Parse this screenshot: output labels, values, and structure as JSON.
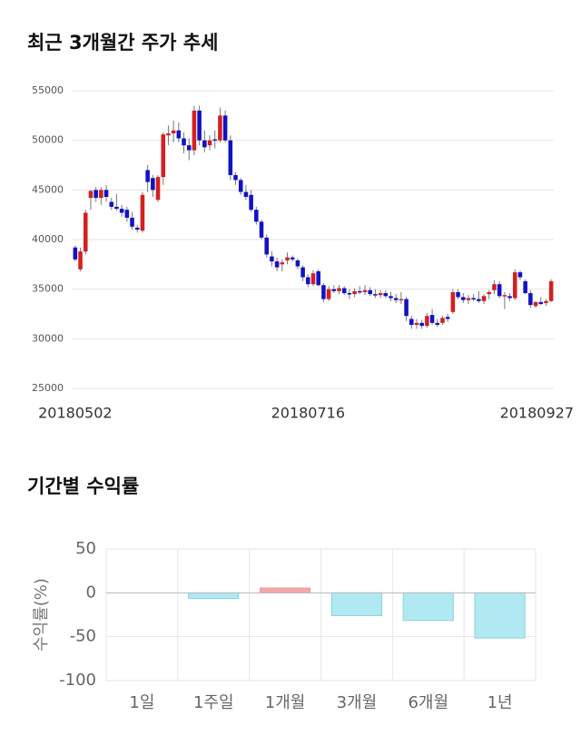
{
  "chart_data": [
    {
      "type": "candlestick",
      "title": "최근 3개월간 주가 추세",
      "categories": [
        "20180502",
        null,
        null,
        null,
        null,
        null,
        null,
        null,
        null,
        null,
        null,
        null,
        null,
        null,
        null,
        null,
        null,
        null,
        null,
        null,
        null,
        null,
        null,
        null,
        null,
        null,
        null,
        null,
        null,
        null,
        null,
        null,
        null,
        null,
        null,
        null,
        null,
        null,
        null,
        null,
        null,
        null,
        null,
        null,
        null,
        "20180716",
        null,
        null,
        null,
        null,
        null,
        null,
        null,
        null,
        null,
        null,
        null,
        null,
        null,
        null,
        null,
        null,
        null,
        null,
        null,
        null,
        null,
        null,
        null,
        null,
        null,
        null,
        null,
        null,
        null,
        null,
        null,
        null,
        null,
        null,
        null,
        null,
        null,
        null,
        null,
        null,
        null,
        null,
        null,
        null,
        null,
        null,
        "20180927"
      ],
      "open": [
        39200,
        37000,
        38800,
        44200,
        45000,
        44200,
        45000,
        43800,
        43300,
        43100,
        43000,
        42200,
        41200,
        40900,
        47000,
        46200,
        44000,
        46300,
        50500,
        50700,
        51000,
        50200,
        49500,
        49000,
        53000,
        50000,
        49500,
        50100,
        50000,
        52500,
        50000,
        46500,
        46000,
        44800,
        44500,
        43000,
        41800,
        40200,
        38300,
        37800,
        37500,
        37900,
        38200,
        37900,
        37200,
        36200,
        35500,
        36800,
        35400,
        34000,
        35000,
        34800,
        35100,
        34600,
        34500,
        34800,
        34700,
        34900,
        34500,
        34400,
        34600,
        34300,
        34100,
        33900,
        34000,
        32000,
        31400,
        31600,
        31300,
        32400,
        31600,
        31600,
        32200,
        32700,
        34700,
        34200,
        33900,
        34100,
        34000,
        33800,
        34500,
        34900,
        35500,
        34300,
        34300,
        34100,
        36700,
        35800,
        34600,
        33300,
        33700,
        33600,
        33800
      ],
      "high": [
        39400,
        39200,
        43000,
        45000,
        45300,
        45300,
        45500,
        44200,
        44600,
        43500,
        43300,
        42800,
        41500,
        44800,
        47500,
        46500,
        46500,
        50800,
        51500,
        52000,
        51800,
        50800,
        50200,
        53500,
        53500,
        51000,
        50500,
        51000,
        53300,
        53000,
        50500,
        46800,
        46200,
        45500,
        45000,
        43300,
        42000,
        40500,
        38800,
        38200,
        38000,
        38700,
        38400,
        38100,
        37400,
        36500,
        36900,
        37000,
        35600,
        35300,
        35400,
        35400,
        35300,
        35000,
        35100,
        35300,
        35400,
        35200,
        35000,
        34900,
        34900,
        34700,
        34500,
        34700,
        34200,
        32300,
        32000,
        31900,
        32600,
        33000,
        32000,
        32300,
        32500,
        35000,
        35000,
        34600,
        34400,
        34500,
        34800,
        34500,
        34900,
        35900,
        35800,
        34700,
        34600,
        37000,
        36900,
        36000,
        34900,
        33800,
        34200,
        34000,
        36000
      ],
      "low": [
        37800,
        36800,
        38500,
        43000,
        43800,
        43500,
        43800,
        43000,
        42900,
        42300,
        41800,
        41000,
        40700,
        40700,
        44800,
        44300,
        43800,
        45500,
        49500,
        49800,
        49800,
        48700,
        48000,
        48500,
        49500,
        48800,
        49000,
        49200,
        49800,
        49800,
        46000,
        45500,
        44500,
        44000,
        42800,
        41500,
        40000,
        38200,
        37300,
        36800,
        36800,
        37500,
        37800,
        37000,
        35800,
        35200,
        35300,
        35300,
        33700,
        33800,
        34600,
        34500,
        34400,
        34000,
        34200,
        34500,
        34400,
        34300,
        34100,
        34100,
        34100,
        33800,
        33600,
        33500,
        31800,
        31000,
        31000,
        31000,
        31100,
        31400,
        31200,
        31400,
        31700,
        32500,
        34000,
        33600,
        33500,
        33800,
        33600,
        33500,
        34000,
        34500,
        34100,
        33000,
        33800,
        33900,
        35900,
        34500,
        33100,
        33100,
        33400,
        33300,
        33700
      ],
      "close": [
        38000,
        38800,
        42700,
        44900,
        44200,
        45000,
        44300,
        43300,
        43100,
        42700,
        42200,
        41300,
        41000,
        44500,
        45800,
        45000,
        46300,
        50600,
        50700,
        51000,
        50200,
        49500,
        49000,
        53000,
        50000,
        49300,
        50000,
        50000,
        52500,
        50000,
        46500,
        46000,
        44800,
        44300,
        43000,
        41800,
        40200,
        38500,
        37800,
        37200,
        37700,
        38200,
        38000,
        37300,
        36200,
        35500,
        36600,
        35400,
        34000,
        35000,
        34800,
        35100,
        34600,
        34500,
        34800,
        34700,
        34900,
        34500,
        34400,
        34600,
        34300,
        34100,
        33900,
        34000,
        32300,
        31400,
        31600,
        31300,
        32300,
        31600,
        31400,
        32100,
        32000,
        34700,
        34200,
        33900,
        34100,
        34000,
        33800,
        34300,
        34700,
        35500,
        34300,
        34400,
        34100,
        36700,
        36200,
        34600,
        33400,
        33700,
        33500,
        33800,
        35800
      ],
      "up_color": "#d42020",
      "down_color": "#1212c4",
      "ylim": [
        25000,
        55000
      ],
      "yticks": [
        25000,
        30000,
        35000,
        40000,
        45000,
        50000,
        55000
      ],
      "grid": true
    },
    {
      "type": "bar",
      "title": "기간별 수익률",
      "y_label": "수익률(%)",
      "categories": [
        "1일",
        "1주일",
        "1개월",
        "3개월",
        "6개월",
        "1년"
      ],
      "values": [
        0,
        -6.5,
        5.5,
        -26,
        -31.5,
        -51.5
      ],
      "positive_color": "#f4a9a8",
      "negative_color": "#b1e9f3",
      "ylim": [
        -100,
        50
      ],
      "yticks": [
        -100,
        -50,
        0,
        50
      ],
      "grid": true
    }
  ]
}
